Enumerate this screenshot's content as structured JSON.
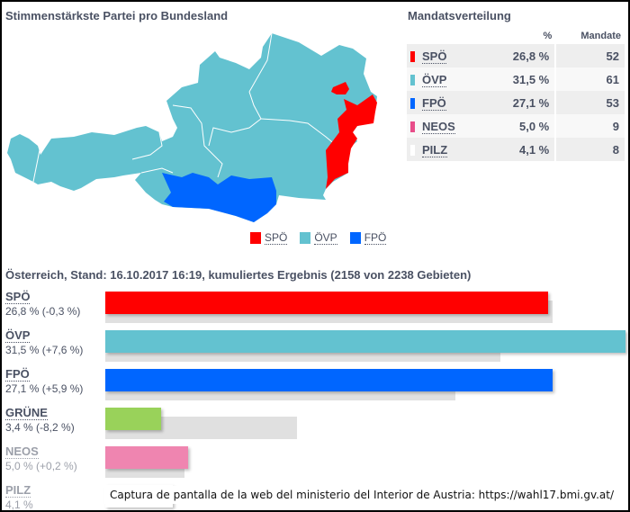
{
  "map": {
    "title": "Stimmenstärkste Partei pro Bundesland",
    "legend": [
      {
        "label": "SPÖ",
        "color": "#ff0000"
      },
      {
        "label": "ÖVP",
        "color": "#63c2d0"
      },
      {
        "label": "FPÖ",
        "color": "#0066ff"
      }
    ]
  },
  "mandate": {
    "title": "Mandatsverteilung",
    "headers": [
      "",
      "%",
      "Mandate"
    ],
    "rows": [
      {
        "party": "SPÖ",
        "pct": "26,8 %",
        "seats": "52",
        "color": "#ff0000"
      },
      {
        "party": "ÖVP",
        "pct": "31,5 %",
        "seats": "61",
        "color": "#63c2d0"
      },
      {
        "party": "FPÖ",
        "pct": "27,1 %",
        "seats": "53",
        "color": "#0066ff"
      },
      {
        "party": "NEOS",
        "pct": "5,0 %",
        "seats": "9",
        "color": "#e84d8a"
      },
      {
        "party": "PILZ",
        "pct": "4,1 %",
        "seats": "8",
        "color": "#ffffff"
      }
    ]
  },
  "results": {
    "title": "Österreich, Stand: 16.10.2017 16:19, kumuliertes Ergebnis (2158 von 2238 Gebieten)",
    "parties": [
      {
        "name": "SPÖ",
        "label": "26,8 % (-0,3 %)",
        "value": 26.8,
        "previous": 27.1,
        "color": "#ff0000"
      },
      {
        "name": "ÖVP",
        "label": "31,5 % (+7,6 %)",
        "value": 31.5,
        "previous": 23.9,
        "color": "#63c2d0"
      },
      {
        "name": "FPÖ",
        "label": "27,1 % (+5,9 %)",
        "value": 27.1,
        "previous": 21.2,
        "color": "#0066ff"
      },
      {
        "name": "GRÜNE",
        "label": "3,4 % (-8,2 %)",
        "value": 3.4,
        "previous": 11.6,
        "color": "#99d25a"
      },
      {
        "name": "NEOS",
        "label": "5,0 % (+0,2 %)",
        "value": 5.0,
        "previous": 4.8,
        "color": "#ef85b0"
      },
      {
        "name": "PILZ",
        "label": "4,1 %",
        "value": 4.1,
        "previous": null,
        "color": "#ffffff"
      }
    ]
  },
  "caption": "Captura de pantalla de la web del ministerio del Interior de Austria: https://wahl17.bmi.gv.at/"
}
